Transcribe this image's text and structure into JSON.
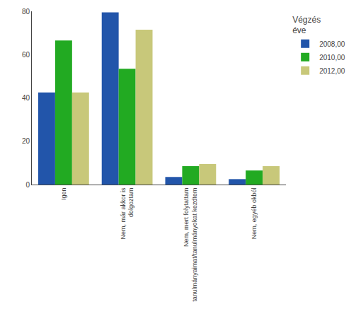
{
  "chart_data": {
    "type": "bar",
    "categories": [
      "Igen",
      "Nem, már akkor is\ndolgoztam",
      "Nem, mert folytattam\ntanulmányaimat/tanulmányokat kezdtem",
      "Nem, egyéb okból"
    ],
    "series": [
      {
        "name": "2008,00",
        "color": "#2255AA",
        "values": [
          42.5,
          79.5,
          3.5,
          2.5
        ]
      },
      {
        "name": "2010,00",
        "color": "#22AA22",
        "values": [
          66.5,
          53.5,
          8.5,
          6.5
        ]
      },
      {
        "name": "2012,00",
        "color": "#C8C87A",
        "values": [
          42.5,
          71.5,
          9.5,
          8.5
        ]
      }
    ],
    "legend_title": "Végzés\néve",
    "legend": "right",
    "ylim": [
      0,
      80
    ],
    "yticks": [
      0,
      20,
      40,
      60,
      80
    ],
    "grid": false
  }
}
